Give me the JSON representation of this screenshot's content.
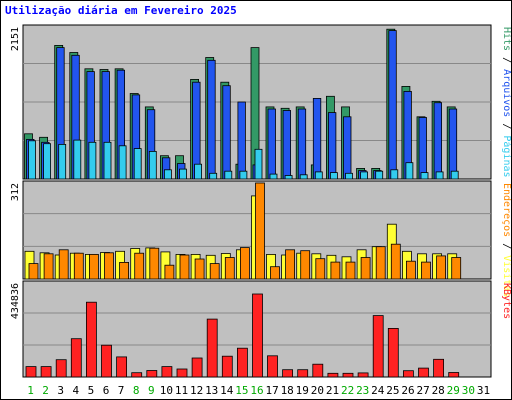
{
  "chart_data": {
    "type": "bar",
    "title": "Utilização diária em Fevereiro 2025",
    "days": [
      "1",
      "2",
      "3",
      "4",
      "5",
      "6",
      "7",
      "8",
      "9",
      "10",
      "11",
      "12",
      "13",
      "14",
      "15",
      "16",
      "17",
      "18",
      "19",
      "20",
      "21",
      "22",
      "23",
      "24",
      "25",
      "26",
      "27",
      "28",
      "29",
      "30",
      "31"
    ],
    "weekend_days": [
      "1",
      "2",
      "8",
      "9",
      "15",
      "16",
      "22",
      "23",
      "29",
      "30"
    ],
    "panels": [
      {
        "name": "hits-panel",
        "max_label": "2151",
        "ymax": 2151,
        "series": [
          {
            "name": "Hits",
            "color": "#339966",
            "values": [
              640,
              590,
              1890,
              1790,
              1560,
              1550,
              1560,
              1210,
              1020,
              330,
              330,
              1410,
              1720,
              1370,
              210,
              1860,
              1020,
              1000,
              1020,
              200,
              1170,
              1020,
              150,
              150,
              2120,
              1310,
              880,
              1100,
              1020,
              null,
              null
            ]
          },
          {
            "name": "Arquivos",
            "color": "#2255ee",
            "values": [
              560,
              520,
              1860,
              1750,
              1520,
              1520,
              1540,
              1190,
              980,
              300,
              220,
              1370,
              1680,
              1320,
              1090,
              200,
              990,
              970,
              990,
              1140,
              940,
              880,
              120,
              120,
              2100,
              1240,
              870,
              1080,
              990,
              null,
              null
            ]
          },
          {
            "name": "Páginas",
            "color": "#33ccee",
            "values": [
              540,
              500,
              490,
              550,
              520,
              520,
              470,
              430,
              390,
              130,
              140,
              210,
              80,
              110,
              110,
              420,
              70,
              50,
              60,
              100,
              90,
              80,
              100,
              110,
              130,
              230,
              90,
              100,
              110,
              null,
              null
            ]
          }
        ],
        "legend": [
          {
            "label": "Hits",
            "color": "#339966"
          },
          {
            "label": "Arquivos",
            "color": "#2255ee"
          },
          {
            "label": "Páginas",
            "color": "#33ccee"
          }
        ]
      },
      {
        "name": "visits-panel",
        "max_label": "312",
        "ymax": 312,
        "series": [
          {
            "name": "Visitas",
            "color": "#ffff33",
            "values": [
              90,
              85,
              78,
              84,
              80,
              86,
              90,
              99,
              101,
              88,
              80,
              80,
              77,
              83,
              95,
              270,
              80,
              78,
              84,
              82,
              77,
              72,
              95,
              105,
              178,
              90,
              82,
              82,
              82,
              null,
              null
            ]
          },
          {
            "name": "Endereços",
            "color": "#ff8800",
            "values": [
              50,
              82,
              95,
              84,
              80,
              85,
              54,
              84,
              100,
              45,
              78,
              65,
              50,
              70,
              102,
              312,
              40,
              95,
              92,
              66,
              55,
              55,
              70,
              105,
              113,
              58,
              55,
              75,
              70,
              null,
              null
            ]
          }
        ],
        "legend": [
          {
            "label": "Endereços",
            "color": "#ff8800"
          },
          {
            "label": "Visitas",
            "color": "#ffff33"
          }
        ]
      },
      {
        "name": "kbytes-panel",
        "max_label": "434836",
        "ymax": 434836,
        "series": [
          {
            "name": "KBytes",
            "color": "#ff2222",
            "values": [
              48000,
              48000,
              80000,
              177000,
              346000,
              147000,
              93000,
              20000,
              30000,
              48000,
              37000,
              88000,
              268000,
              96000,
              133000,
              384000,
              98000,
              34000,
              34000,
              59000,
              17000,
              17000,
              19000,
              284000,
              225000,
              29000,
              41000,
              82000,
              21000,
              null,
              null
            ]
          }
        ],
        "legend": [
          {
            "label": "KBytes",
            "color": "#ff2222"
          }
        ]
      }
    ]
  }
}
